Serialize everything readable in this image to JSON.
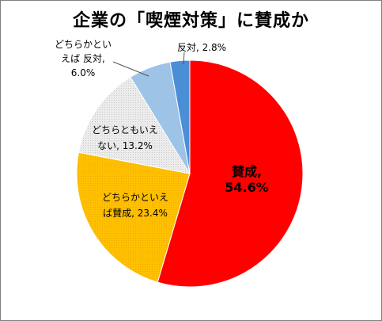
{
  "chart_data": {
    "type": "pie",
    "title": "企業の「喫煙対策」に賛成か",
    "slices": [
      {
        "label_lines": [
          "賛成,",
          "54.6%"
        ],
        "value": 54.6,
        "color": "#ff0000",
        "pattern": "solid"
      },
      {
        "label_lines": [
          "どちらかといえ",
          "ば賛成, 23.4%"
        ],
        "value": 23.4,
        "color": "#ffc000",
        "pattern": "dots"
      },
      {
        "label_lines": [
          "どちらともいえ",
          "ない, 13.2%"
        ],
        "value": 13.2,
        "color": "#e6e6e6",
        "pattern": "dots"
      },
      {
        "label_lines": [
          "どちらかとい",
          "えば 反対,",
          "6.0%"
        ],
        "value": 6.0,
        "color": "#9dc3e6",
        "pattern": "solid"
      },
      {
        "label_lines": [
          "反対, 2.8%"
        ],
        "value": 2.8,
        "color": "#4a8fd6",
        "pattern": "solid"
      }
    ],
    "start_angle_deg": 0,
    "direction": "clockwise"
  }
}
